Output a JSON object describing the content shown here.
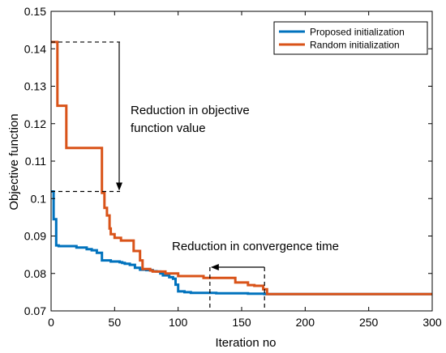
{
  "chart_data": {
    "type": "line",
    "title": "",
    "xlabel": "Iteration no",
    "ylabel": "Objective function",
    "xlim": [
      0,
      300
    ],
    "ylim": [
      0.07,
      0.15
    ],
    "xticks": [
      0,
      50,
      100,
      150,
      200,
      250,
      300
    ],
    "xtick_labels": [
      "0",
      "50",
      "100",
      "150",
      "200",
      "250",
      "300"
    ],
    "yticks": [
      0.07,
      0.08,
      0.09,
      0.1,
      0.11,
      0.12,
      0.13,
      0.14,
      0.15
    ],
    "ytick_labels": [
      "0.07",
      "0.08",
      "0.09",
      "0.1",
      "0.11",
      "0.12",
      "0.13",
      "0.14",
      "0.15"
    ],
    "grid": false,
    "legend_position": "top-right",
    "series": [
      {
        "name": "Proposed initialization",
        "color": "#0072BD",
        "x": [
          0,
          2,
          4,
          6,
          16,
          20,
          28,
          32,
          36,
          40,
          47,
          54,
          56,
          58,
          62,
          66,
          70,
          75,
          80,
          83,
          86,
          88,
          93,
          96,
          98,
          100,
          105,
          110,
          130,
          155,
          168,
          300
        ],
        "y": [
          0.1019,
          0.0945,
          0.0875,
          0.0873,
          0.0873,
          0.0869,
          0.0865,
          0.0862,
          0.0855,
          0.0835,
          0.0832,
          0.083,
          0.0828,
          0.0826,
          0.0823,
          0.0815,
          0.081,
          0.0809,
          0.0806,
          0.0805,
          0.08,
          0.0795,
          0.079,
          0.0786,
          0.077,
          0.0752,
          0.075,
          0.0748,
          0.0747,
          0.0746,
          0.0745,
          0.0745
        ]
      },
      {
        "name": "Random  initialization",
        "color": "#D95319",
        "x": [
          0,
          3,
          5,
          10,
          12,
          20,
          28,
          36,
          38,
          40,
          42,
          44,
          46,
          47,
          50,
          55,
          60,
          65,
          70,
          72,
          78,
          80,
          90,
          100,
          120,
          145,
          155,
          160,
          167,
          170,
          300
        ],
        "y": [
          0.1418,
          0.1418,
          0.1248,
          0.1248,
          0.1135,
          0.1135,
          0.1135,
          0.1135,
          0.1135,
          0.1015,
          0.0975,
          0.0955,
          0.092,
          0.0905,
          0.0895,
          0.0888,
          0.0888,
          0.086,
          0.0835,
          0.0812,
          0.0808,
          0.0805,
          0.08,
          0.0793,
          0.0788,
          0.0776,
          0.0769,
          0.0767,
          0.0758,
          0.0745,
          0.0745
        ]
      }
    ],
    "annotations": [
      {
        "text_lines": [
          "Reduction in objective",
          "function value"
        ],
        "arrow": "vertical",
        "from": [
          0,
          0.1418
        ],
        "to": [
          0,
          0.1019
        ]
      },
      {
        "text_lines": [
          "Reduction in convergence time"
        ],
        "arrow": "horizontal",
        "from": [
          168,
          0.0745
        ],
        "to": [
          125,
          0.0745
        ]
      }
    ]
  }
}
